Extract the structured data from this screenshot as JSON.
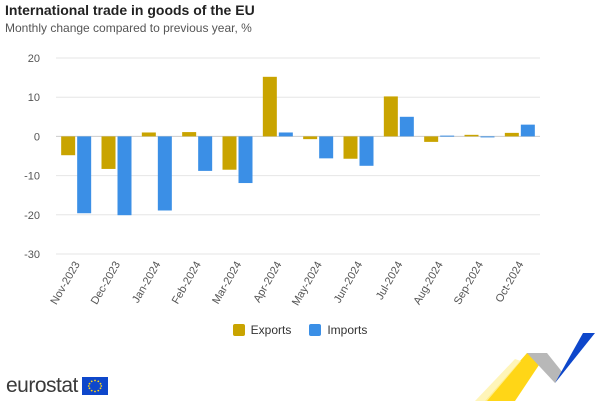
{
  "header": {
    "title": "International trade in goods of the EU",
    "subtitle": "Monthly change compared to previous year, %"
  },
  "brand": {
    "name": "eurostat"
  },
  "colors": {
    "exports": "#c9a400",
    "imports": "#3b8fe6",
    "grid": "#e6e6e6",
    "axis_text": "#555555"
  },
  "chart_data": {
    "type": "bar",
    "categories": [
      "Nov-2023",
      "Dec-2023",
      "Jan-2024",
      "Feb-2024",
      "Mar-2024",
      "Apr-2024",
      "May-2024",
      "Jun-2024",
      "Jul-2024",
      "Aug-2024",
      "Sep-2024",
      "Oct-2024"
    ],
    "series": [
      {
        "name": "Exports",
        "values": [
          -4.8,
          -8.3,
          1.0,
          1.1,
          -8.5,
          15.2,
          -0.7,
          -5.7,
          10.2,
          -1.4,
          0.4,
          0.9
        ]
      },
      {
        "name": "Imports",
        "values": [
          -19.6,
          -20.1,
          -18.9,
          -8.8,
          -11.9,
          1.0,
          -5.6,
          -7.5,
          5.0,
          0.2,
          -0.2,
          3.0
        ]
      }
    ],
    "ylim": [
      -30,
      20
    ],
    "yticks": [
      20,
      10,
      0,
      -10,
      -20,
      -30
    ],
    "grid": true,
    "legend_position": "bottom-center"
  }
}
